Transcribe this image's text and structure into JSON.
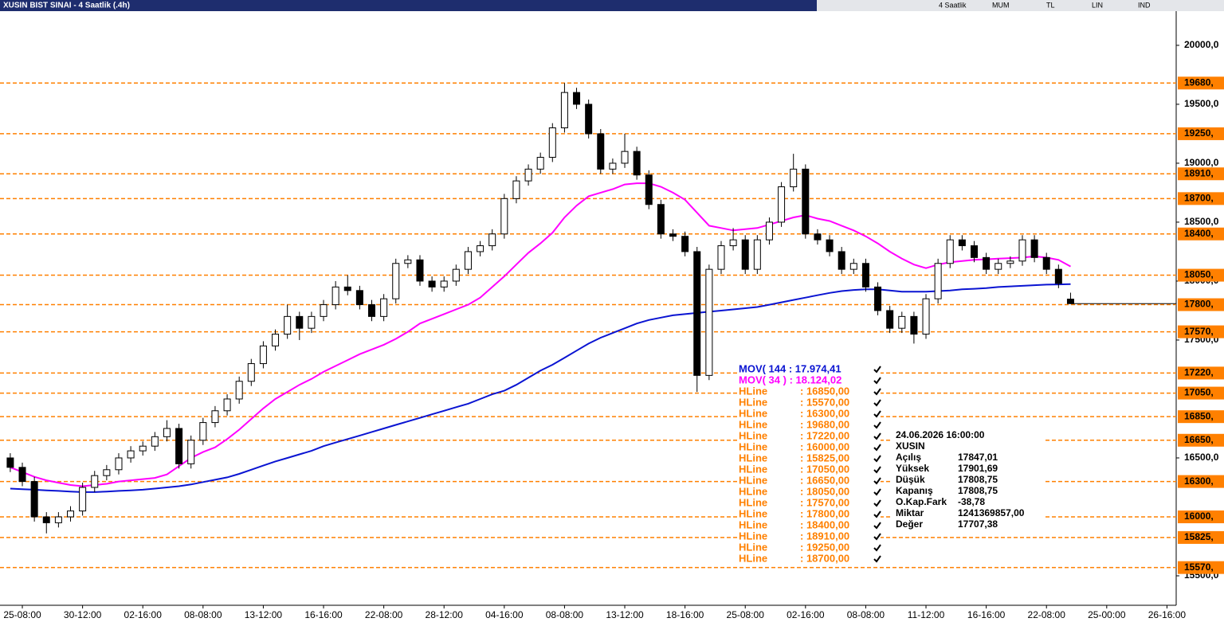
{
  "chart_data": {
    "type": "candlestick",
    "title": "XUSIN BIST SINAI - 4 Saatlik (.4h)",
    "toolbar": [
      "4 Saatlik",
      "MUM",
      "TL",
      "LIN",
      "IND"
    ],
    "categories": [
      null,
      "25-08:00",
      null,
      null,
      null,
      null,
      "30-12:00",
      null,
      null,
      null,
      null,
      "02-16:00",
      null,
      null,
      null,
      null,
      "08-08:00",
      null,
      null,
      null,
      null,
      "13-12:00",
      null,
      null,
      null,
      null,
      "16-16:00",
      null,
      null,
      null,
      null,
      "22-08:00",
      null,
      null,
      null,
      null,
      "28-12:00",
      null,
      null,
      null,
      null,
      "04-16:00",
      null,
      null,
      null,
      null,
      "08-08:00",
      null,
      null,
      null,
      null,
      "13-12:00",
      null,
      null,
      null,
      null,
      "18-16:00",
      null,
      null,
      null,
      null,
      "25-08:00",
      null,
      null,
      null,
      null,
      "02-16:00",
      null,
      null,
      null,
      null,
      "08-08:00",
      null,
      null,
      null,
      null,
      "11-12:00",
      null,
      null,
      null,
      null,
      "16-16:00",
      null,
      null,
      null,
      null,
      "22-08:00",
      null,
      null,
      null,
      null,
      "25-00:00",
      null,
      null,
      null,
      null,
      "26-16:00"
    ],
    "open": [
      16500,
      16420,
      16300,
      16000,
      15950,
      16000,
      16050,
      16250,
      16350,
      16400,
      16500,
      16560,
      16600,
      16680,
      16750,
      16450,
      16650,
      16800,
      16900,
      17000,
      17150,
      17300,
      17450,
      17550,
      17700,
      17600,
      17700,
      17800,
      17950,
      17920,
      17800,
      17700,
      17850,
      18150,
      18180,
      18000,
      17950,
      18000,
      18100,
      18250,
      18300,
      18400,
      18700,
      18850,
      18950,
      19050,
      19300,
      19600,
      19500,
      19250,
      18950,
      19000,
      19100,
      18900,
      18650,
      18400,
      18380,
      18250,
      17200,
      18100,
      18300,
      18350,
      18100,
      18350,
      18500,
      18800,
      18950,
      18400,
      18350,
      18250,
      18100,
      18150,
      17950,
      17750,
      17600,
      17700,
      17550,
      17850,
      18150,
      18350,
      18300,
      18200,
      18100,
      18150,
      18170,
      18350,
      18200,
      18100,
      17847.01,
      null,
      null,
      null,
      null,
      null,
      null,
      null,
      null
    ],
    "high": [
      16540,
      16460,
      16340,
      16040,
      16040,
      16090,
      16290,
      16390,
      16440,
      16540,
      16600,
      16640,
      16720,
      16820,
      16790,
      16690,
      16840,
      16940,
      17040,
      17190,
      17340,
      17490,
      17590,
      17800,
      17740,
      17740,
      17840,
      18000,
      18050,
      17960,
      17840,
      17890,
      18190,
      18220,
      18220,
      18040,
      18040,
      18140,
      18290,
      18340,
      18440,
      18740,
      18890,
      18990,
      19090,
      19340,
      19680,
      19640,
      19540,
      19290,
      19040,
      19250,
      19140,
      18940,
      18690,
      18440,
      18420,
      18290,
      18140,
      18340,
      18450,
      18390,
      18390,
      18540,
      18840,
      19080,
      18990,
      18440,
      18390,
      18290,
      18190,
      18190,
      17990,
      17790,
      17740,
      17740,
      17890,
      18190,
      18390,
      18390,
      18340,
      18240,
      18190,
      18210,
      18390,
      18390,
      18240,
      18140,
      17901.69,
      null,
      null,
      null,
      null,
      null,
      null,
      null,
      null
    ],
    "low": [
      16380,
      16260,
      15960,
      15860,
      15910,
      15960,
      16010,
      16210,
      16310,
      16360,
      16460,
      16520,
      16560,
      16640,
      16410,
      16410,
      16610,
      16760,
      16860,
      16960,
      17110,
      17260,
      17410,
      17510,
      17500,
      17560,
      17660,
      17760,
      17880,
      17760,
      17660,
      17660,
      17810,
      18110,
      17960,
      17910,
      17910,
      17960,
      18060,
      18210,
      18260,
      18360,
      18660,
      18810,
      18910,
      19010,
      19260,
      19460,
      19210,
      18910,
      18910,
      18960,
      18860,
      18610,
      18360,
      18340,
      18210,
      17060,
      17160,
      18060,
      18260,
      18060,
      18060,
      18310,
      18460,
      18760,
      18360,
      18310,
      18210,
      18060,
      18060,
      17910,
      17710,
      17560,
      17560,
      17470,
      17510,
      17810,
      18110,
      18260,
      18160,
      18060,
      18060,
      18110,
      18130,
      18160,
      18060,
      17940,
      17808.75,
      null,
      null,
      null,
      null,
      null,
      null,
      null,
      null
    ],
    "close": [
      16420,
      16300,
      16000,
      15950,
      16000,
      16050,
      16250,
      16350,
      16400,
      16500,
      16560,
      16600,
      16680,
      16750,
      16450,
      16650,
      16800,
      16900,
      17000,
      17150,
      17300,
      17450,
      17550,
      17700,
      17600,
      17700,
      17800,
      17950,
      17920,
      17800,
      17700,
      17850,
      18150,
      18180,
      18000,
      17950,
      18000,
      18100,
      18250,
      18300,
      18400,
      18700,
      18850,
      18950,
      19050,
      19300,
      19600,
      19500,
      19250,
      18950,
      19000,
      19100,
      18900,
      18650,
      18400,
      18380,
      18250,
      17200,
      18100,
      18300,
      18350,
      18100,
      18350,
      18500,
      18800,
      18950,
      18400,
      18350,
      18250,
      18100,
      18150,
      17950,
      17750,
      17600,
      17700,
      17550,
      17850,
      18150,
      18350,
      18300,
      18200,
      18100,
      18150,
      18170,
      18350,
      18200,
      18100,
      17980,
      17808.75,
      null,
      null,
      null,
      null,
      null,
      null,
      null,
      null
    ],
    "up_color": "#ffffff",
    "down_color": "#000000",
    "series": [
      {
        "name": "MOV( 144 : 17.974,41",
        "color": "#0a14d2",
        "values": [
          16240,
          16235,
          16230,
          16225,
          16220,
          16215,
          16210,
          16210,
          16215,
          16220,
          16225,
          16230,
          16240,
          16250,
          16260,
          16275,
          16295,
          16315,
          16335,
          16365,
          16400,
          16435,
          16470,
          16500,
          16530,
          16560,
          16600,
          16630,
          16660,
          16690,
          16720,
          16750,
          16780,
          16810,
          16840,
          16870,
          16900,
          16930,
          16960,
          17000,
          17040,
          17070,
          17120,
          17180,
          17240,
          17290,
          17350,
          17410,
          17470,
          17520,
          17560,
          17600,
          17640,
          17670,
          17690,
          17710,
          17720,
          17730,
          17740,
          17750,
          17760,
          17770,
          17780,
          17800,
          17820,
          17840,
          17860,
          17880,
          17900,
          17915,
          17925,
          17930,
          17930,
          17920,
          17910,
          17910,
          17910,
          17915,
          17920,
          17930,
          17935,
          17940,
          17950,
          17955,
          17960,
          17965,
          17970,
          17972,
          17974.41,
          null,
          null,
          null,
          null,
          null,
          null,
          null,
          null
        ]
      },
      {
        "name": "MOV( 34 ) : 18.124,02",
        "color": "#ff00ff",
        "values": [
          16420,
          16380,
          16340,
          16310,
          16290,
          16270,
          16260,
          16270,
          16280,
          16300,
          16310,
          16320,
          16330,
          16360,
          16430,
          16500,
          16550,
          16590,
          16660,
          16740,
          16830,
          16920,
          17000,
          17060,
          17120,
          17170,
          17230,
          17280,
          17330,
          17380,
          17420,
          17460,
          17510,
          17570,
          17640,
          17680,
          17720,
          17760,
          17800,
          17860,
          17950,
          18040,
          18140,
          18240,
          18320,
          18410,
          18540,
          18640,
          18720,
          18750,
          18780,
          18820,
          18830,
          18830,
          18800,
          18750,
          18690,
          18580,
          18470,
          18450,
          18430,
          18440,
          18450,
          18480,
          18510,
          18540,
          18560,
          18530,
          18510,
          18470,
          18430,
          18380,
          18320,
          18250,
          18190,
          18140,
          18110,
          18140,
          18160,
          18170,
          18180,
          18185,
          18190,
          18195,
          18200,
          18210,
          18200,
          18180,
          18124.02,
          null,
          null,
          null,
          null,
          null,
          null,
          null,
          null
        ]
      }
    ],
    "hlines": {
      "name": "HLine",
      "color": "#ff8000",
      "values": [
        16850,
        15570,
        16300,
        19680,
        17220,
        16000,
        15825,
        17050,
        16650,
        18050,
        17570,
        17800,
        18400,
        18910,
        19250,
        18700
      ],
      "legend_labels": [
        ": 16850,00",
        ": 15570,00",
        ": 16300,00",
        ": 19680,00",
        ": 17220,00",
        ": 16000,00",
        ": 15825,00",
        ": 17050,00",
        ": 16650,00",
        ": 18050,00",
        ": 17570,00",
        ": 17800,00",
        ": 18400,00",
        ": 18910,00",
        ": 19250,00",
        ": 18700,00"
      ],
      "tags": [
        "16850,",
        "15570,",
        "16300,",
        "19680,",
        "17220,",
        "16000,",
        "15825,",
        "17050,",
        "16650,",
        "18050,",
        "17570,",
        "17800,",
        "18400,",
        "18910,",
        "19250,",
        "18700,"
      ]
    },
    "ylim": [
      15250,
      20290
    ],
    "yticks": [
      {
        "value": 15500,
        "label": "15500,0"
      },
      {
        "value": 16500,
        "label": "16500,0"
      },
      {
        "value": 17500,
        "label": "17500,0"
      },
      {
        "value": 18000,
        "label": "18000,0"
      },
      {
        "value": 18500,
        "label": "18500,0"
      },
      {
        "value": 19000,
        "label": "19000,0"
      },
      {
        "value": 19500,
        "label": "19500,0"
      },
      {
        "value": 20000,
        "label": "20000,0"
      }
    ],
    "info": {
      "datetime": "24.06.2026  16:00:00",
      "symbol": "XUSIN",
      "rows": [
        [
          "Açılış",
          "17847,01"
        ],
        [
          "Yüksek",
          "17901,69"
        ],
        [
          "Düşük",
          "17808,75"
        ],
        [
          "Kapanış",
          "17808,75"
        ],
        [
          "O.Kap.Fark",
          "-38,78"
        ],
        [
          "Miktar",
          "1241369857,00"
        ],
        [
          "Değer",
          "17707,38"
        ]
      ]
    }
  }
}
